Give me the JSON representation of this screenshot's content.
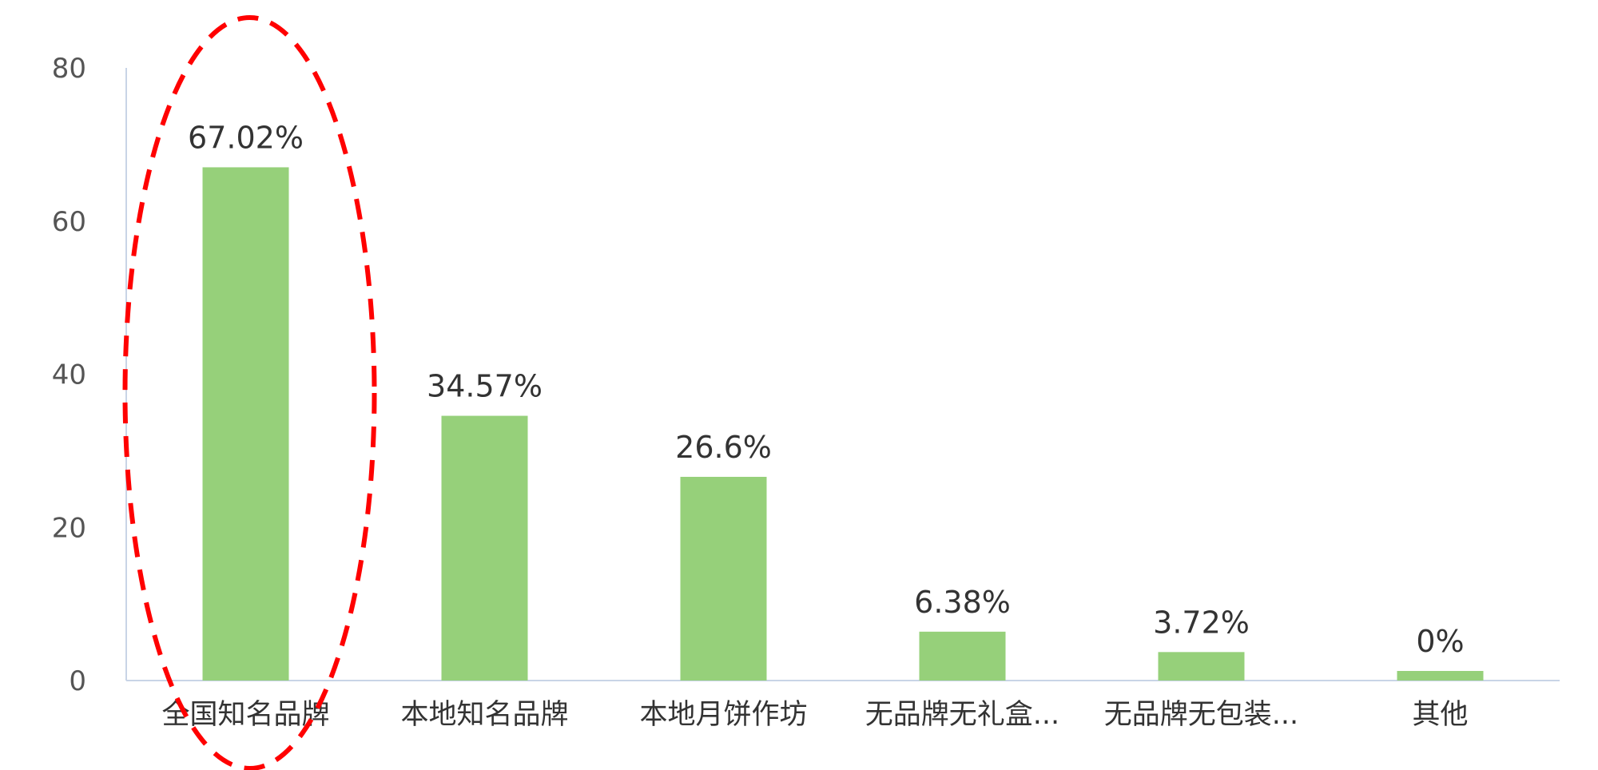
{
  "chart_data": {
    "type": "bar",
    "categories": [
      "全国知名品牌",
      "本地知名品牌",
      "本地月饼作坊",
      "无品牌无礼盒...",
      "无品牌无包装...",
      "其他"
    ],
    "values": [
      67.02,
      34.57,
      26.6,
      6.38,
      3.72,
      0
    ],
    "data_labels": [
      "67.02%",
      "34.57%",
      "26.6%",
      "6.38%",
      "3.72%",
      "0%"
    ],
    "y_ticks": [
      "0",
      "20",
      "40",
      "60",
      "80"
    ],
    "ylim": [
      0,
      80
    ],
    "title": "",
    "xlabel": "",
    "ylabel": "",
    "grid": false,
    "legend": "none",
    "colors": {
      "bar": "#96d07a",
      "axis": "#c8d4e6",
      "highlight": "#ff0000"
    },
    "annotation": {
      "shape": "dashed-ellipse",
      "target_category": "全国知名品牌"
    }
  }
}
